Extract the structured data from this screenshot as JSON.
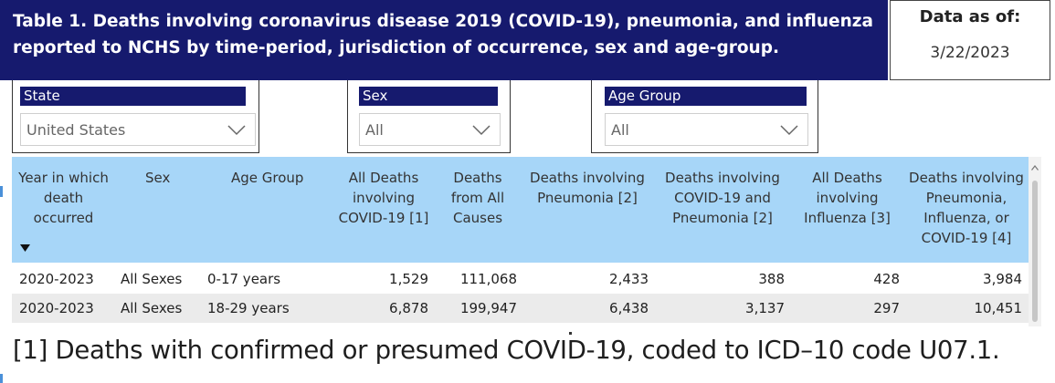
{
  "header": {
    "title": "Table 1. Deaths involving coronavirus disease 2019 (COVID-19), pneumonia, and influenza reported to NCHS by time-period, jurisdiction of occurrence, sex and age-group.",
    "data_as_of_label": "Data as of:",
    "data_as_of_date": "3/22/2023"
  },
  "filters": {
    "state": {
      "label": "State",
      "value": "United States"
    },
    "sex": {
      "label": "Sex",
      "value": "All"
    },
    "age_group": {
      "label": "Age Group",
      "value": "All"
    }
  },
  "table": {
    "columns": [
      "Year in which death occurred",
      "Sex",
      "Age Group",
      "All Deaths involving COVID-19 [1]",
      "Deaths from All Causes",
      "Deaths involving Pneumonia [2]",
      "Deaths involving COVID-19 and Pneumonia [2]",
      "All Deaths involving Influenza [3]",
      "Deaths involving Pneumonia, Influenza, or COVID-19 [4]"
    ],
    "rows": [
      [
        "2020-2023",
        "All Sexes",
        "0-17 years",
        "1,529",
        "111,068",
        "2,433",
        "388",
        "428",
        "3,984"
      ],
      [
        "2020-2023",
        "All Sexes",
        "18-29 years",
        "6,878",
        "199,947",
        "6,438",
        "3,137",
        "297",
        "10,451"
      ]
    ]
  },
  "footnote": "[1] Deaths with confirmed or presumed COVID-19, coded to ICD–10 code U07.1.",
  "colors": {
    "header_navy": "#161a6e",
    "table_header_blue": "#a7d6f8",
    "alt_row_gray": "#ebebeb"
  },
  "icons": {
    "dropdown": "chevron-down-icon",
    "sort": "sort-desc-icon",
    "scroll": "scroll-up-icon"
  }
}
